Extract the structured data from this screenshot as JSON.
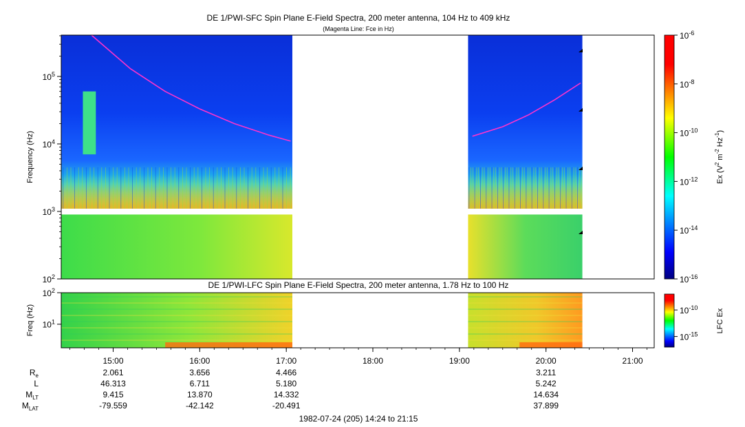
{
  "chart_data": [
    {
      "type": "heatmap",
      "title": "DE 1/PWI-SFC  Spin Plane E-Field Spectra, 200 meter antenna, 104 Hz to 409 kHz",
      "subtitle": "(Magenta Line: Fce in Hz)",
      "ylabel": "Frequency (Hz)",
      "y_scale": "log",
      "ylim_hz": [
        100,
        409000
      ],
      "y_ticks": [
        {
          "value": 100,
          "mant": "10",
          "exp": "2"
        },
        {
          "value": 1000,
          "mant": "10",
          "exp": "3"
        },
        {
          "value": 10000,
          "mant": "10",
          "exp": "4"
        },
        {
          "value": 100000,
          "mant": "10",
          "exp": "5"
        }
      ],
      "data_intervals_ut_hours": [
        [
          14.4,
          17.07
        ],
        [
          19.1,
          20.42
        ]
      ],
      "low_band_hz": [
        100,
        900
      ],
      "high_band_hz": [
        1100,
        409000
      ],
      "fce_series": [
        {
          "name": "Fce segment 1",
          "t": [
            14.75,
            15.2,
            15.6,
            16.0,
            16.4,
            16.8,
            17.05
          ],
          "f": [
            409000,
            130000,
            60000,
            33000,
            20000,
            13500,
            11000
          ]
        },
        {
          "name": "Fce segment 2",
          "t": [
            19.15,
            19.5,
            19.8,
            20.1,
            20.4
          ],
          "f": [
            13000,
            18000,
            27000,
            45000,
            80000
          ]
        }
      ],
      "colorbar": {
        "label_base": "Ex (V",
        "label_sup1": "2",
        "label_mid": " m",
        "label_sup2": "-2",
        "label_mid2": " Hz",
        "label_sup3": "-1",
        "label_end": ")",
        "range_log10": [
          -16,
          -6
        ],
        "ticks": [
          {
            "value": -6,
            "mant": "10",
            "exp": "-6"
          },
          {
            "value": -8,
            "mant": "10",
            "exp": "-8"
          },
          {
            "value": -10,
            "mant": "10",
            "exp": "-10"
          },
          {
            "value": -12,
            "mant": "10",
            "exp": "-12"
          },
          {
            "value": -14,
            "mant": "10",
            "exp": "-14"
          },
          {
            "value": -16,
            "mant": "10",
            "exp": "-16"
          }
        ]
      }
    },
    {
      "type": "heatmap",
      "title": "DE 1/PWI-LFC  Spin Plane E-Field Spectra, 200 meter antenna, 1.78 Hz to 100 Hz",
      "ylabel": "Freq (Hz)",
      "y_scale": "log",
      "ylim_hz": [
        1.78,
        100
      ],
      "y_ticks": [
        {
          "value": 100,
          "mant": "10",
          "exp": "2"
        },
        {
          "value": 10,
          "mant": "10",
          "exp": "1"
        }
      ],
      "data_intervals_ut_hours": [
        [
          14.4,
          17.07
        ],
        [
          19.1,
          20.42
        ]
      ],
      "colorbar": {
        "label": "LFC Ex",
        "range_log10": [
          -17,
          -7
        ],
        "ticks": [
          {
            "value": -10,
            "mant": "10",
            "exp": "-10"
          },
          {
            "value": -15,
            "mant": "10",
            "exp": "-15"
          }
        ]
      }
    }
  ],
  "x_axis": {
    "xlim_ut_hours": [
      14.4,
      21.25
    ],
    "ticks": [
      {
        "value": 15,
        "label": "15:00"
      },
      {
        "value": 16,
        "label": "16:00"
      },
      {
        "value": 17,
        "label": "17:00"
      },
      {
        "value": 18,
        "label": "18:00"
      },
      {
        "value": 19,
        "label": "19:00"
      },
      {
        "value": 20,
        "label": "20:00"
      },
      {
        "value": 21,
        "label": "21:00"
      }
    ]
  },
  "ephemeris": {
    "labels": [
      {
        "base": "R",
        "sub": "e"
      },
      {
        "base": "L",
        "sub": ""
      },
      {
        "base": "M",
        "sub": "LT"
      },
      {
        "base": "M",
        "sub": "LAT"
      }
    ],
    "columns": [
      {
        "t": 15,
        "values": [
          "2.061",
          "46.313",
          "9.415",
          "-79.559"
        ]
      },
      {
        "t": 16,
        "values": [
          "3.656",
          "6.711",
          "13.870",
          "-42.142"
        ]
      },
      {
        "t": 17,
        "values": [
          "4.466",
          "5.180",
          "14.332",
          "-20.491"
        ]
      },
      {
        "t": 20,
        "values": [
          "3.211",
          "5.242",
          "14.634",
          "37.899"
        ]
      }
    ]
  },
  "footer": "1982-07-24 (205) 14:24 to 21:15",
  "colors": {
    "fce_line": "#ff33cc",
    "background": "#ffffff",
    "axis": "#000000"
  }
}
